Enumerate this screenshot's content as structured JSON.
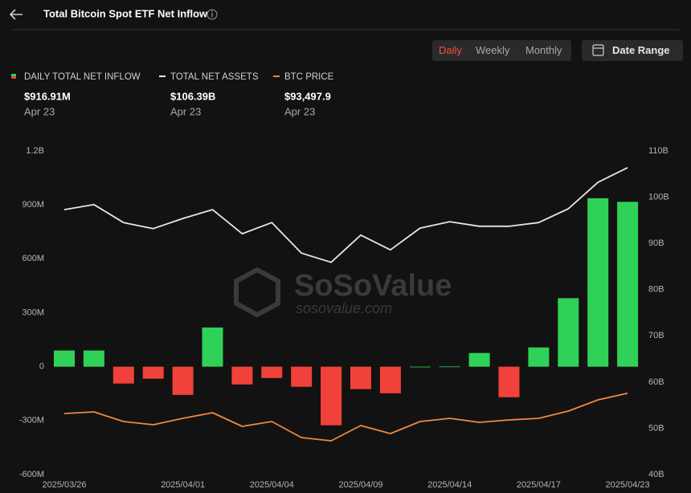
{
  "ui": {
    "title": "Total Bitcoin Spot ETF Net Inflow",
    "periods": [
      "Daily",
      "Weekly",
      "Monthly"
    ],
    "active_period": 0,
    "date_range": "Date Range",
    "watermark": "SoSoValue",
    "watermark_url": "sosovalue.com"
  },
  "chart_data": {
    "type": "bar",
    "categories": [
      "2025/03/26",
      null,
      null,
      null,
      "2025/04/01",
      null,
      null,
      "2025/04/04",
      null,
      null,
      "2025/04/09",
      null,
      null,
      "2025/04/14",
      null,
      null,
      "2025/04/17",
      null,
      null,
      "2025/04/23"
    ],
    "series": [
      {
        "name": "DAILY TOTAL NET INFLOW",
        "type": "bar",
        "up_color": "#30d158",
        "down_color": "#f0413a",
        "values": [
          90,
          90,
          -94,
          -67,
          -157,
          218,
          -99,
          -63,
          -112,
          -326,
          -125,
          -148,
          0,
          1,
          76,
          -170,
          107,
          381,
          937,
          916.91
        ],
        "summary": "$916.91M",
        "summary_date": "Apr 23"
      },
      {
        "name": "TOTAL NET ASSETS",
        "type": "line",
        "color": "#e6e6e6",
        "axis": "y2",
        "values": [
          97.3,
          98.4,
          94.5,
          93.2,
          95.4,
          97.3,
          92.1,
          94.5,
          87.9,
          85.9,
          91.8,
          88.6,
          93.3,
          94.7,
          93.7,
          93.7,
          94.5,
          97.5,
          103.2,
          106.39
        ],
        "summary": "$106.39B",
        "summary_date": "Apr 23"
      },
      {
        "name": "BTC PRICE",
        "type": "line",
        "color": "#f0883e",
        "axis": "y3",
        "values": [
          86160,
          86740,
          83240,
          82080,
          84410,
          86450,
          81490,
          83240,
          77410,
          76250,
          81780,
          78870,
          83240,
          84410,
          82950,
          83820,
          84410,
          87030,
          91110,
          93497.9
        ],
        "summary": "$93,497.9",
        "summary_date": "Apr 23"
      }
    ],
    "ylim": [
      -600,
      1200
    ],
    "yticks": [
      {
        "value": -600,
        "label": "-600M"
      },
      {
        "value": -300,
        "label": "-300M"
      },
      0,
      {
        "value": 300,
        "label": "300M"
      },
      {
        "value": 600,
        "label": "600M"
      },
      {
        "value": 900,
        "label": "900M"
      },
      {
        "value": 1200,
        "label": "1.2B"
      }
    ],
    "y2lim": [
      40,
      110
    ],
    "y2ticks": [
      {
        "value": 40,
        "label": "40B"
      },
      {
        "value": 50,
        "label": "50B"
      },
      {
        "value": 60,
        "label": "60B"
      },
      {
        "value": 70,
        "label": "70B"
      },
      {
        "value": 80,
        "label": "80B"
      },
      {
        "value": 90,
        "label": "90B"
      },
      {
        "value": 100,
        "label": "100B"
      },
      {
        "value": 110,
        "label": "110B"
      }
    ],
    "y3lim": [
      64000,
      181500
    ],
    "grid": false
  }
}
